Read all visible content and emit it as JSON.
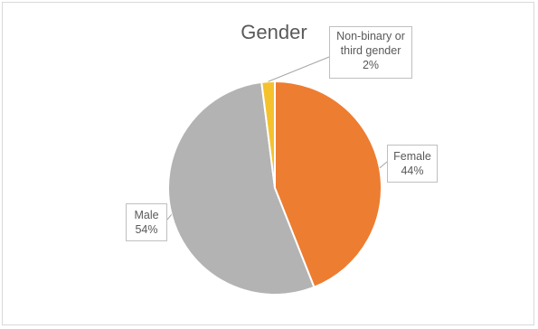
{
  "chart_data": {
    "type": "pie",
    "title": "Gender",
    "slices": [
      {
        "label": "Female",
        "value": 44,
        "value_label": "44%",
        "color": "#ED7D31"
      },
      {
        "label": "Male",
        "value": 54,
        "value_label": "54%",
        "color": "#B3B3B3"
      },
      {
        "label": "Non-binary or third gender",
        "label_lines": [
          "Non-binary or",
          "third gender"
        ],
        "value": 2,
        "value_label": "2%",
        "color": "#F5C22D"
      }
    ],
    "start_angle_deg": 0,
    "direction": "clockwise",
    "legend": "none",
    "data_labels": "callouts"
  }
}
